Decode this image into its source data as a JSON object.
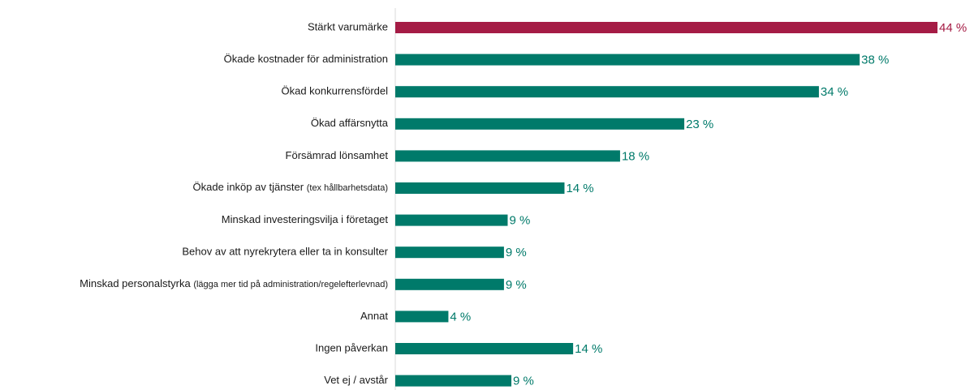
{
  "chart_data": {
    "type": "barh",
    "categories": [
      "Stärkt varumärke",
      "Ökade kostnader för administration",
      "Ökad konkurrensfördel",
      "Ökad affärsnytta",
      "Försämrad lönsamhet",
      "Ökade inköp av tjänster (tex hållbarhetsdata)",
      "Minskad investeringsvilja i företaget",
      "Behov av att nyrekrytera eller ta in konsulter",
      "Minskad personalstyrka (lägga mer tid på administration/regelefterlevnad)",
      "Annat",
      "Ingen påverkan",
      "Vet ej / avstår"
    ],
    "values": [
      43.9,
      37.6,
      34.3,
      23.4,
      18.2,
      13.7,
      9.1,
      8.8,
      8.8,
      4.3,
      14.4,
      9.4
    ],
    "value_labels": [
      "44 %",
      "38 %",
      "34 %",
      "23 %",
      "18 %",
      "14 %",
      "9 %",
      "9 %",
      "9 %",
      "4 %",
      "14 %",
      "9 %"
    ],
    "colors": [
      "#a51c45",
      "#007a6a",
      "#007a6a",
      "#007a6a",
      "#007a6a",
      "#007a6a",
      "#007a6a",
      "#007a6a",
      "#007a6a",
      "#007a6a",
      "#007a6a",
      "#007a6a"
    ]
  }
}
